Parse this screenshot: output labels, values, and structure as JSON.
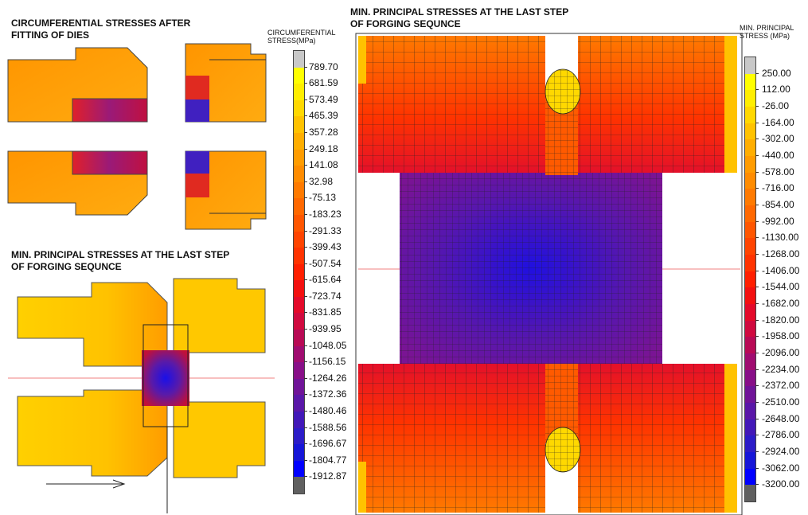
{
  "titles": {
    "circ_title": "CIRCUMFERENTIAL STRESSES AFTER\nFITTING OF DIES",
    "minp_left_title": "MIN. PRINCIPAL STRESSES AT THE LAST STEP\nOF FORGING SEQUNCE",
    "minp_right_title": "MIN. PRINCIPAL STRESSES AT THE LAST STEP\nOF FORGING SEQUNCE"
  },
  "legend_circ": {
    "header": "CIRCUMFERENTIAL\nSTRESS(MPa)",
    "labels": [
      "789.70",
      "681.59",
      "573.49",
      "465.39",
      "357.28",
      "249.18",
      "141.08",
      "32.98",
      "-75.13",
      "-183.23",
      "-291.33",
      "-399.43",
      "-507.54",
      "-615.64",
      "-723.74",
      "-831.85",
      "-939.95",
      "-1048.05",
      "-1156.15",
      "-1264.26",
      "-1372.36",
      "-1480.46",
      "-1588.56",
      "-1696.67",
      "-1804.77",
      "-1912.87"
    ],
    "colors": [
      "#c8c8c8",
      "#ffff00",
      "#ffee00",
      "#ffd800",
      "#ffc200",
      "#ffae00",
      "#ff9c00",
      "#ff8c00",
      "#ff7a00",
      "#ff6800",
      "#ff5600",
      "#ff4400",
      "#ff3300",
      "#ff1f00",
      "#f31010",
      "#e40a2a",
      "#d00a3f",
      "#b80a55",
      "#a00c70",
      "#880f88",
      "#701498",
      "#5a17a8",
      "#4218b8",
      "#2c1cc8",
      "#1616d8",
      "#0000ff",
      "#606060"
    ]
  },
  "legend_minp": {
    "header": "MIN. PRINCIPAL\nSTRESS (MPa)",
    "labels": [
      "250.00",
      "112.00",
      "-26.00",
      "-164.00",
      "-302.00",
      "-440.00",
      "-578.00",
      "-716.00",
      "-854.00",
      "-992.00",
      "-1130.00",
      "-1268.00",
      "-1406.00",
      "-1544.00",
      "-1682.00",
      "-1820.00",
      "-1958.00",
      "-2096.00",
      "-2234.00",
      "-2372.00",
      "-2510.00",
      "-2648.00",
      "-2786.00",
      "-2924.00",
      "-3062.00",
      "-3200.00"
    ],
    "colors": [
      "#c8c8c8",
      "#ffff00",
      "#ffee00",
      "#ffd800",
      "#ffc200",
      "#ffae00",
      "#ff9c00",
      "#ff8c00",
      "#ff7a00",
      "#ff6800",
      "#ff5600",
      "#ff4400",
      "#ff3300",
      "#ff1f00",
      "#f31010",
      "#e40a2a",
      "#d00a3f",
      "#b80a55",
      "#a00c70",
      "#880f88",
      "#701498",
      "#5a17a8",
      "#4218b8",
      "#2c1cc8",
      "#1616d8",
      "#0000ff",
      "#606060"
    ]
  }
}
